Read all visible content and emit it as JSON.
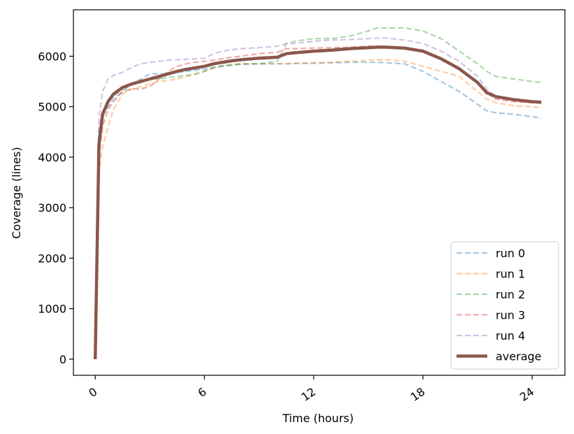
{
  "chart_data": {
    "type": "line",
    "xlabel": "Time (hours)",
    "ylabel": "Coverage (lines)",
    "xlim": [
      -1.2,
      25.8
    ],
    "ylim": [
      -320,
      6920
    ],
    "xticks": [
      0,
      6,
      12,
      18,
      24
    ],
    "xtick_labels": [
      "0",
      "6",
      "12",
      "18",
      "24"
    ],
    "xtick_rotation": -35,
    "yticks": [
      0,
      1000,
      2000,
      3000,
      4000,
      5000,
      6000
    ],
    "ytick_labels": [
      "0",
      "1000",
      "2000",
      "3000",
      "4000",
      "5000",
      "6000"
    ],
    "grid": false,
    "legend_position": "lower-right",
    "x": [
      0,
      0.2,
      0.4,
      0.7,
      1.0,
      1.5,
      2.0,
      2.5,
      3.0,
      3.5,
      4.0,
      4.5,
      5.0,
      5.5,
      6.0,
      6.5,
      7.0,
      7.5,
      8.0,
      9.0,
      10.0,
      10.5,
      11.0,
      12.0,
      13.0,
      14.0,
      15.0,
      15.5,
      16.0,
      17.0,
      18.0,
      19.0,
      20.0,
      21.0,
      21.5,
      22.0,
      23.0,
      24.0,
      24.5
    ],
    "series": [
      {
        "name": "run 0",
        "color": "#1f77b4",
        "style": "dashed",
        "alpha": 0.4,
        "values": [
          0,
          4300,
          4800,
          5000,
          5150,
          5300,
          5450,
          5550,
          5650,
          5650,
          5650,
          5680,
          5700,
          5720,
          5740,
          5780,
          5810,
          5830,
          5840,
          5850,
          5850,
          5850,
          5855,
          5860,
          5870,
          5880,
          5880,
          5880,
          5870,
          5850,
          5700,
          5500,
          5300,
          5050,
          4920,
          4880,
          4850,
          4800,
          4780
        ]
      },
      {
        "name": "run 1",
        "color": "#ff7f0e",
        "style": "dashed",
        "alpha": 0.4,
        "values": [
          0,
          3700,
          4200,
          4600,
          4950,
          5250,
          5350,
          5400,
          5450,
          5500,
          5520,
          5550,
          5600,
          5640,
          5700,
          5760,
          5810,
          5840,
          5850,
          5850,
          5850,
          5850,
          5860,
          5870,
          5880,
          5900,
          5920,
          5930,
          5930,
          5900,
          5800,
          5700,
          5600,
          5300,
          5150,
          5080,
          5020,
          5000,
          4980
        ]
      },
      {
        "name": "run 2",
        "color": "#2ca02c",
        "style": "dashed",
        "alpha": 0.4,
        "values": [
          0,
          4500,
          4900,
          5100,
          5200,
          5350,
          5450,
          5500,
          5550,
          5550,
          5580,
          5600,
          5620,
          5650,
          5700,
          5780,
          5800,
          5820,
          5850,
          5850,
          5900,
          6250,
          6300,
          6350,
          6350,
          6400,
          6500,
          6560,
          6560,
          6560,
          6500,
          6350,
          6100,
          5850,
          5700,
          5600,
          5550,
          5500,
          5480
        ]
      },
      {
        "name": "run 3",
        "color": "#d62728",
        "style": "dashed",
        "alpha": 0.4,
        "values": [
          0,
          4000,
          4600,
          4950,
          5100,
          5300,
          5350,
          5350,
          5400,
          5550,
          5700,
          5800,
          5850,
          5880,
          5900,
          5920,
          5950,
          5980,
          6000,
          6050,
          6080,
          6150,
          6150,
          6160,
          6170,
          6180,
          6200,
          6200,
          6190,
          6170,
          6120,
          5950,
          5750,
          5500,
          5280,
          5150,
          5100,
          5080,
          5070
        ]
      },
      {
        "name": "run 4",
        "color": "#9467bd",
        "style": "dashed",
        "alpha": 0.4,
        "values": [
          0,
          4800,
          5300,
          5550,
          5620,
          5680,
          5780,
          5850,
          5880,
          5900,
          5920,
          5930,
          5940,
          5950,
          5960,
          6050,
          6100,
          6130,
          6150,
          6170,
          6200,
          6250,
          6250,
          6300,
          6320,
          6330,
          6350,
          6360,
          6360,
          6320,
          6250,
          6100,
          5900,
          5600,
          5350,
          5200,
          5130,
          5100,
          5090
        ]
      },
      {
        "name": "average",
        "color": "#8c564b",
        "style": "solid",
        "alpha": 1.0,
        "values": [
          0,
          4250,
          4850,
          5100,
          5250,
          5380,
          5450,
          5500,
          5550,
          5600,
          5650,
          5700,
          5740,
          5770,
          5800,
          5850,
          5880,
          5910,
          5930,
          5960,
          5980,
          6050,
          6070,
          6100,
          6120,
          6150,
          6170,
          6180,
          6180,
          6160,
          6100,
          5950,
          5750,
          5480,
          5280,
          5200,
          5140,
          5100,
          5090
        ]
      }
    ]
  }
}
